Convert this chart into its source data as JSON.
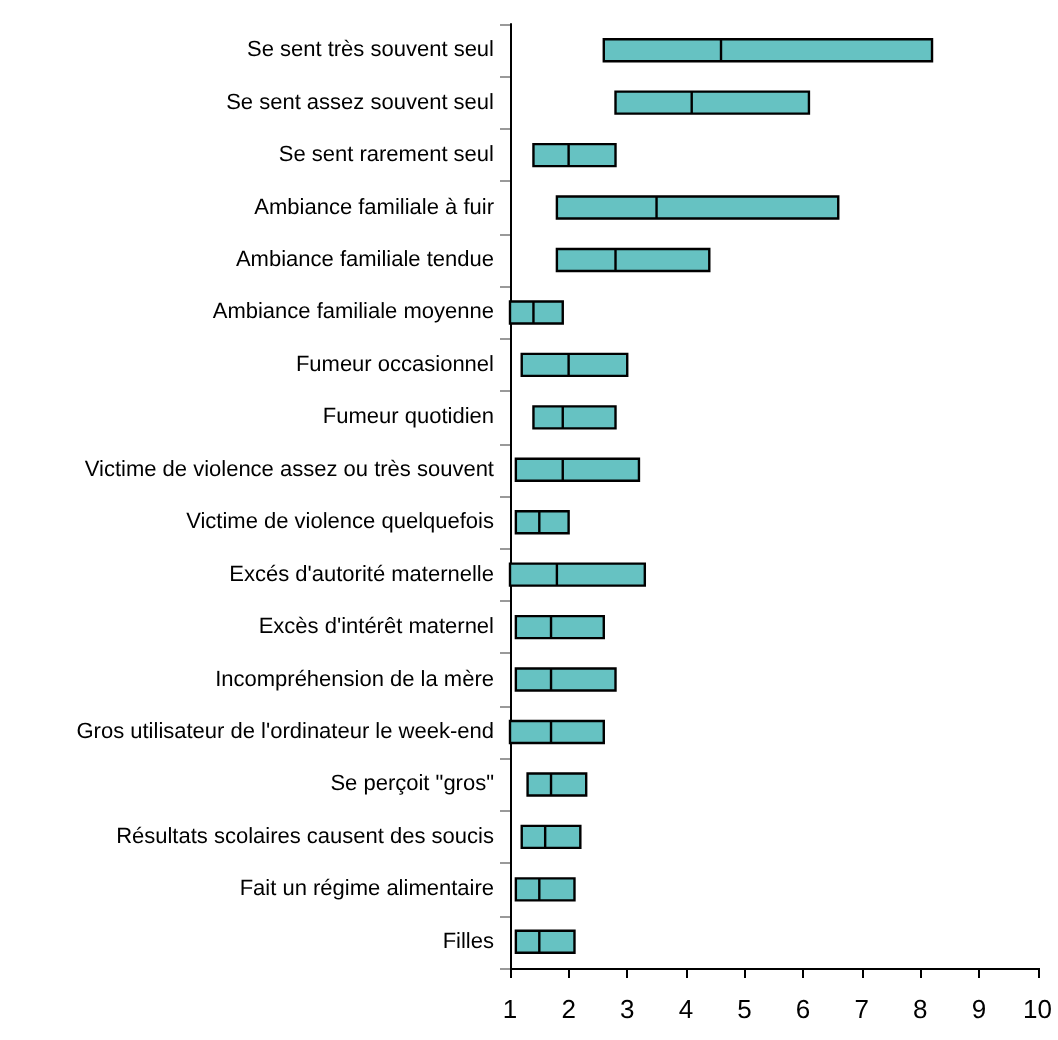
{
  "chart_data": {
    "type": "box",
    "orientation": "horizontal",
    "categories": [
      "Se sent très souvent seul",
      "Se sent assez souvent seul",
      "Se sent rarement seul",
      "Ambiance familiale à fuir",
      "Ambiance familiale tendue",
      "Ambiance familiale moyenne",
      "Fumeur occasionnel",
      "Fumeur quotidien",
      "Victime de violence assez ou très souvent",
      "Victime de violence quelquefois",
      "Excés d'autorité maternelle",
      "Excès d'intérêt maternel",
      "Incompréhension de la mère",
      "Gros utilisateur de l'ordinateur le week-end",
      "Se perçoit \"gros\"",
      "Résultats scolaires causent des soucis",
      "Fait un régime alimentaire",
      "Filles"
    ],
    "color": "#66c2c2",
    "boxes": [
      {
        "low": 2.6,
        "q1": 2.6,
        "median": 4.6,
        "q3": 8.2,
        "high": 8.2
      },
      {
        "low": 2.8,
        "q1": 2.8,
        "median": 4.1,
        "q3": 6.1,
        "high": 6.1
      },
      {
        "low": 1.4,
        "q1": 1.4,
        "median": 2.0,
        "q3": 2.8,
        "high": 2.8
      },
      {
        "low": 1.8,
        "q1": 1.8,
        "median": 3.5,
        "q3": 6.6,
        "high": 6.6
      },
      {
        "low": 1.8,
        "q1": 1.8,
        "median": 2.8,
        "q3": 4.4,
        "high": 4.4
      },
      {
        "low": 1.0,
        "q1": 1.0,
        "median": 1.4,
        "q3": 1.9,
        "high": 1.9
      },
      {
        "low": 1.2,
        "q1": 1.2,
        "median": 2.0,
        "q3": 3.0,
        "high": 3.0
      },
      {
        "low": 1.4,
        "q1": 1.4,
        "median": 1.9,
        "q3": 2.8,
        "high": 2.8
      },
      {
        "low": 1.1,
        "q1": 1.1,
        "median": 1.9,
        "q3": 3.2,
        "high": 3.2
      },
      {
        "low": 1.1,
        "q1": 1.1,
        "median": 1.5,
        "q3": 2.0,
        "high": 2.0
      },
      {
        "low": 1.0,
        "q1": 1.0,
        "median": 1.8,
        "q3": 3.3,
        "high": 3.3
      },
      {
        "low": 1.1,
        "q1": 1.1,
        "median": 1.7,
        "q3": 2.6,
        "high": 2.6
      },
      {
        "low": 1.1,
        "q1": 1.1,
        "median": 1.7,
        "q3": 2.8,
        "high": 2.8
      },
      {
        "low": 1.0,
        "q1": 1.0,
        "median": 1.7,
        "q3": 2.6,
        "high": 2.6
      },
      {
        "low": 1.3,
        "q1": 1.3,
        "median": 1.7,
        "q3": 2.3,
        "high": 2.3
      },
      {
        "low": 1.2,
        "q1": 1.2,
        "median": 1.6,
        "q3": 2.2,
        "high": 2.2
      },
      {
        "low": 1.1,
        "q1": 1.1,
        "median": 1.5,
        "q3": 2.1,
        "high": 2.1
      },
      {
        "low": 1.1,
        "q1": 1.1,
        "median": 1.5,
        "q3": 2.1,
        "high": 2.1
      }
    ],
    "xlim": [
      1,
      10
    ],
    "xticks": [
      1,
      2,
      3,
      4,
      5,
      6,
      7,
      8,
      9,
      10
    ],
    "grid": false
  }
}
